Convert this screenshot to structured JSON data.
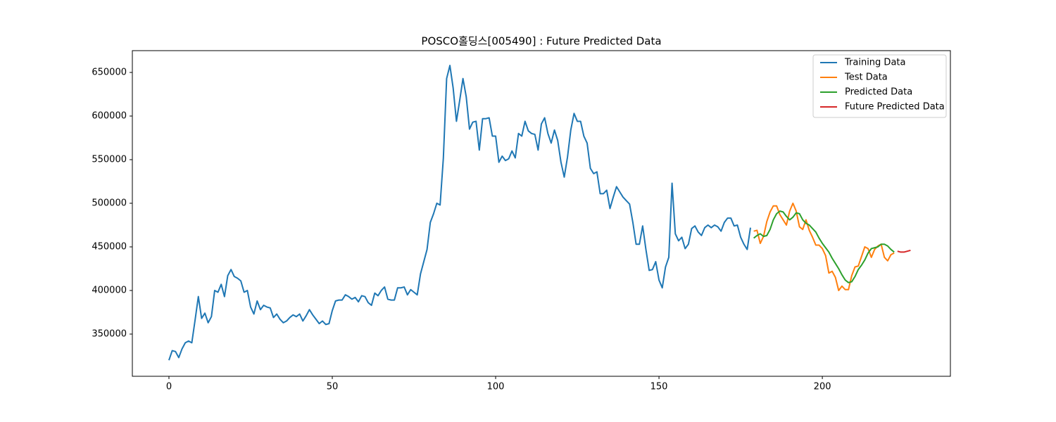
{
  "chart_data": {
    "type": "line",
    "title": "POSCO홀딩스[005490] : Future Predicted Data",
    "xlim": [
      -11.2,
      239.2
    ],
    "xticks": [
      0,
      50,
      100,
      150,
      200
    ],
    "ylim": [
      301600,
      675000
    ],
    "yticks": [
      350000,
      400000,
      450000,
      500000,
      550000,
      600000,
      650000
    ],
    "legend": "upper right",
    "series": [
      {
        "name": "Training Data",
        "color": "#1f77b4",
        "x": [
          0,
          1,
          2,
          3,
          4,
          5,
          6,
          7,
          8,
          9,
          10,
          11,
          12,
          13,
          14,
          15,
          16,
          17,
          18,
          19,
          20,
          21,
          22,
          23,
          24,
          25,
          26,
          27,
          28,
          29,
          30,
          31,
          32,
          33,
          34,
          35,
          36,
          37,
          38,
          39,
          40,
          41,
          42,
          43,
          44,
          45,
          46,
          47,
          48,
          49,
          50,
          51,
          52,
          53,
          54,
          55,
          56,
          57,
          58,
          59,
          60,
          61,
          62,
          63,
          64,
          65,
          66,
          67,
          68,
          69,
          70,
          71,
          72,
          73,
          74,
          75,
          76,
          77,
          78,
          79,
          80,
          81,
          82,
          83,
          84,
          85,
          86,
          87,
          88,
          89,
          90,
          91,
          92,
          93,
          94,
          95,
          96,
          97,
          98,
          99,
          100,
          101,
          102,
          103,
          104,
          105,
          106,
          107,
          108,
          109,
          110,
          111,
          112,
          113,
          114,
          115,
          116,
          117,
          118,
          119,
          120,
          121,
          122,
          123,
          124,
          125,
          126,
          127,
          128,
          129,
          130,
          131,
          132,
          133,
          134,
          135,
          136,
          137,
          138,
          139,
          140,
          141,
          142,
          143,
          144,
          145,
          146,
          147,
          148,
          149,
          150,
          151,
          152,
          153,
          154,
          155,
          156,
          157,
          158,
          159,
          160,
          161,
          162,
          163,
          164,
          165,
          166,
          167,
          168,
          169,
          170,
          171,
          172,
          173,
          174,
          175,
          176,
          177,
          178
        ],
        "values": [
          320000,
          331000,
          330000,
          323000,
          333000,
          340000,
          342000,
          340000,
          366000,
          393000,
          368000,
          374000,
          363000,
          370000,
          400000,
          398000,
          407000,
          393000,
          417000,
          424000,
          416000,
          414000,
          411000,
          398000,
          400000,
          381000,
          373000,
          388000,
          378000,
          383000,
          381000,
          380000,
          369000,
          373000,
          367000,
          363000,
          365000,
          369000,
          372000,
          370000,
          373000,
          365000,
          371000,
          378000,
          372000,
          367000,
          362000,
          365000,
          361000,
          362000,
          377000,
          388000,
          389000,
          389000,
          395000,
          393000,
          390000,
          392000,
          387000,
          394000,
          393000,
          386000,
          383000,
          397000,
          394000,
          400000,
          404000,
          390000,
          389000,
          389000,
          403000,
          403000,
          404000,
          395000,
          401000,
          398000,
          395000,
          419000,
          433000,
          447000,
          478000,
          488000,
          500000,
          498000,
          552000,
          643000,
          658000,
          632000,
          594000,
          618000,
          643000,
          622000,
          585000,
          593000,
          594000,
          561000,
          597000,
          597000,
          598000,
          577000,
          577000,
          547000,
          554000,
          549000,
          551000,
          560000,
          552000,
          580000,
          577000,
          594000,
          583000,
          580000,
          579000,
          561000,
          591000,
          598000,
          580000,
          569000,
          584000,
          572000,
          547000,
          530000,
          553000,
          584000,
          603000,
          594000,
          594000,
          577000,
          569000,
          540000,
          534000,
          536000,
          511000,
          511000,
          515000,
          494000,
          507000,
          519000,
          513000,
          507000,
          503000,
          499000,
          478000,
          453000,
          453000,
          474000,
          447000,
          423000,
          424000,
          433000,
          412000,
          403000,
          427000,
          438000,
          523000,
          465000,
          457000,
          461000,
          448000,
          453000,
          471000,
          474000,
          467000,
          463000,
          472000,
          475000,
          472000,
          475000,
          473000,
          468000,
          478000,
          483000,
          483000,
          474000,
          475000,
          461000,
          453000,
          447000,
          472000
        ]
      },
      {
        "name": "Test Data",
        "color": "#ff7f0e",
        "x": [
          179,
          180,
          181,
          182,
          183,
          184,
          185,
          186,
          187,
          188,
          189,
          190,
          191,
          192,
          193,
          194,
          195,
          196,
          197,
          198,
          199,
          200,
          201,
          202,
          203,
          204,
          205,
          206,
          207,
          208,
          209,
          210,
          211,
          212,
          213,
          214,
          215,
          216,
          217,
          218,
          219,
          220,
          221,
          222
        ],
        "values": [
          468000,
          469000,
          454000,
          462000,
          479000,
          490000,
          497000,
          497000,
          487000,
          481000,
          475000,
          491000,
          500000,
          491000,
          473000,
          470000,
          481000,
          469000,
          461000,
          452000,
          452000,
          448000,
          440000,
          420000,
          422000,
          415000,
          400000,
          405000,
          401000,
          401000,
          417000,
          427000,
          428000,
          439000,
          450000,
          448000,
          438000,
          447000,
          451000,
          453000,
          438000,
          434000,
          441000,
          443000
        ]
      },
      {
        "name": "Predicted Data",
        "color": "#2ca02c",
        "x": [
          179,
          180,
          181,
          182,
          183,
          184,
          185,
          186,
          187,
          188,
          189,
          190,
          191,
          192,
          193,
          194,
          195,
          196,
          197,
          198,
          199,
          200,
          201,
          202,
          203,
          204,
          205,
          206,
          207,
          208,
          209,
          210,
          211,
          212,
          213,
          214,
          215,
          216,
          217,
          218,
          219,
          220,
          221,
          222
        ],
        "values": [
          460000,
          463000,
          465000,
          462000,
          463000,
          470000,
          481000,
          488000,
          491000,
          490000,
          485000,
          481000,
          484000,
          489000,
          488000,
          481000,
          477000,
          475000,
          471000,
          467000,
          460000,
          454000,
          449000,
          444000,
          437000,
          431000,
          425000,
          418000,
          412000,
          409000,
          410000,
          416000,
          424000,
          429000,
          435000,
          443000,
          448000,
          449000,
          450000,
          453000,
          453000,
          451000,
          447000,
          444000
        ]
      },
      {
        "name": "Future Predicted Data",
        "color": "#d62728",
        "x": [
          223,
          224,
          225,
          226,
          227
        ],
        "values": [
          445000,
          444000,
          444000,
          445000,
          446000
        ]
      }
    ]
  }
}
